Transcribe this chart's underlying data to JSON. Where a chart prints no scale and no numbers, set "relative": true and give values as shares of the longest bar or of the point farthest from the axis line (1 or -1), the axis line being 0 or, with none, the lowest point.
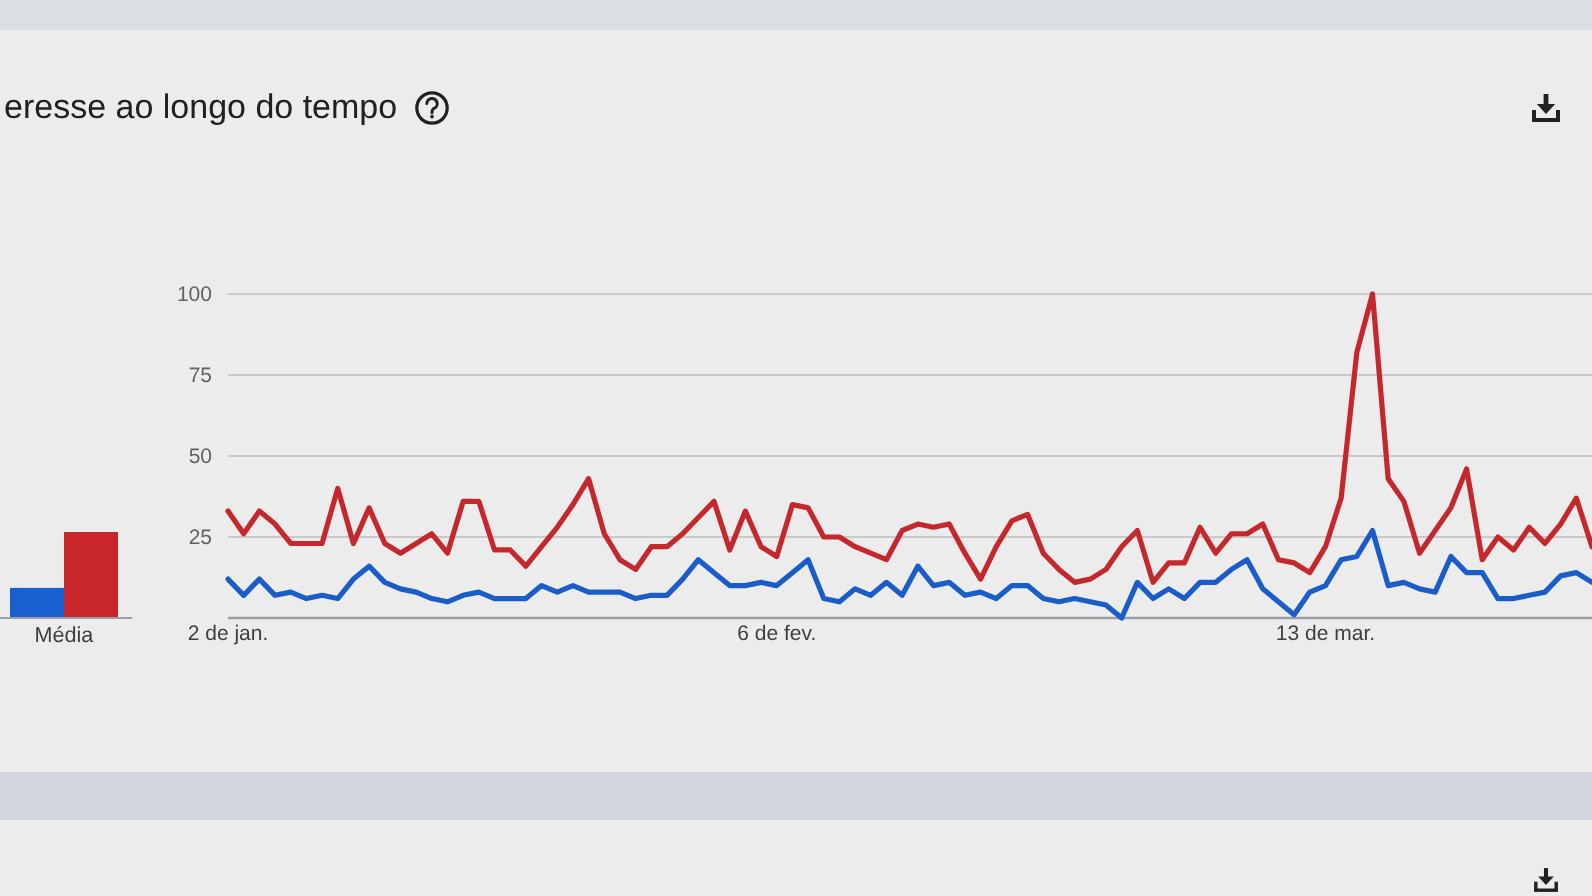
{
  "chart_data": [
    {
      "type": "bar",
      "title": "eresse ao longo do tempo",
      "relative": true,
      "categories": [
        "Média"
      ],
      "series": [
        {
          "color": "#1a5fd0",
          "values": [
            0.35
          ]
        },
        {
          "color": "#c9262b",
          "values": [
            1
          ]
        }
      ]
    },
    {
      "type": "line",
      "x": [
        "--01-02",
        "--01-03",
        "--01-04",
        "--01-05",
        "--01-06",
        "--01-07",
        "--01-08",
        "--01-09",
        "--01-10",
        "--01-11",
        "--01-12",
        "--01-13",
        "--01-14",
        "--01-15",
        "--01-16",
        "--01-17",
        "--01-18",
        "--01-19",
        "--01-20",
        "--01-21",
        "--01-22",
        "--01-23",
        "--01-24",
        "--01-25",
        "--01-26",
        "--01-27",
        "--01-28",
        "--01-29",
        "--01-30",
        "--01-31",
        "--02-01",
        "--02-02",
        "--02-03",
        "--02-04",
        "--02-05",
        "--02-06",
        "--02-07",
        "--02-08",
        "--02-09",
        "--02-10",
        "--02-11",
        "--02-12",
        "--02-13",
        "--02-14",
        "--02-15",
        "--02-16",
        "--02-17",
        "--02-18",
        "--02-19",
        "--02-20",
        "--02-21",
        "--02-22",
        "--02-23",
        "--02-24",
        "--02-25",
        "--02-26",
        "--02-27",
        "--02-28",
        "--03-01",
        "--03-02",
        "--03-03",
        "--03-04",
        "--03-05",
        "--03-06",
        "--03-07",
        "--03-08",
        "--03-09",
        "--03-10",
        "--03-11",
        "--03-12",
        "--03-13",
        "--03-14",
        "--03-15",
        "--03-16",
        "--03-17",
        "--03-18",
        "--03-19",
        "--03-20",
        "--03-21",
        "--03-22",
        "--03-23",
        "--03-24",
        "--03-25",
        "--03-26",
        "--03-27",
        "--03-28",
        "--03-29",
        "--03-30"
      ],
      "series": [
        {
          "color": "#c5282c",
          "values": [
            33,
            26,
            33,
            29,
            23,
            23,
            23,
            40,
            23,
            34,
            23,
            20,
            23,
            26,
            20,
            36,
            36,
            21,
            21,
            16,
            22,
            28,
            35,
            43,
            26,
            18,
            15,
            22,
            22,
            26,
            31,
            36,
            21,
            33,
            22,
            19,
            35,
            34,
            25,
            25,
            22,
            20,
            18,
            27,
            29,
            28,
            29,
            20,
            12,
            22,
            30,
            32,
            20,
            15,
            11,
            12,
            15,
            22,
            27,
            11,
            17,
            17,
            28,
            20,
            26,
            26,
            29,
            18,
            17,
            14,
            22,
            37,
            82,
            100,
            43,
            36,
            20,
            27,
            34,
            46,
            18,
            25,
            21,
            28,
            23,
            29,
            37,
            22
          ]
        },
        {
          "color": "#1a5cc8",
          "values": [
            12,
            7,
            12,
            7,
            8,
            6,
            7,
            6,
            12,
            16,
            11,
            9,
            8,
            6,
            5,
            7,
            8,
            6,
            6,
            6,
            10,
            8,
            10,
            8,
            8,
            8,
            6,
            7,
            7,
            12,
            18,
            14,
            10,
            10,
            11,
            10,
            14,
            18,
            6,
            5,
            9,
            7,
            11,
            7,
            16,
            10,
            11,
            7,
            8,
            6,
            10,
            10,
            6,
            5,
            6,
            5,
            4,
            0,
            11,
            6,
            9,
            6,
            11,
            11,
            15,
            18,
            9,
            5,
            1,
            8,
            10,
            18,
            19,
            27,
            10,
            11,
            9,
            8,
            19,
            14,
            14,
            6,
            6,
            7,
            8,
            13,
            14,
            11
          ]
        }
      ],
      "xlim": [
        "--01-02",
        "--03-30"
      ],
      "xticks": [
        {
          "value": "--01-02",
          "label": "2 de jan."
        },
        {
          "value": "--02-06",
          "label": "6 de fev."
        },
        {
          "value": "--03-13",
          "label": "13 de mar."
        }
      ],
      "ylim": [
        0,
        100
      ],
      "yticks": [
        25,
        50,
        75,
        100
      ],
      "grid": "y"
    }
  ]
}
